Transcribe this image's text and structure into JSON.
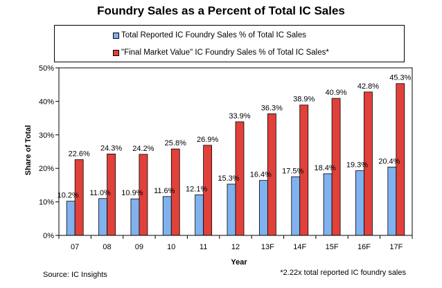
{
  "chart_data": {
    "type": "bar",
    "title": "Foundry Sales as a Percent of Total IC Sales",
    "xlabel": "Year",
    "ylabel": "Share of Total",
    "categories": [
      "07",
      "08",
      "09",
      "10",
      "11",
      "12",
      "13F",
      "14F",
      "15F",
      "16F",
      "17F"
    ],
    "series": [
      {
        "name": "Total Reported IC Foundry Sales % of Total IC Sales",
        "color": "#7fb2ee",
        "values": [
          10.2,
          11.0,
          10.9,
          11.6,
          12.1,
          15.3,
          16.4,
          17.5,
          18.4,
          19.3,
          20.4
        ],
        "labels": [
          "10.2%",
          "11.0%",
          "10.9%",
          "11.6%",
          "12.1%",
          "15.3%",
          "16.4%",
          "17.5%",
          "18.4%",
          "19.3%",
          "20.4%"
        ]
      },
      {
        "name": "\"Final Market Value\" IC Foundry Sales % of Total IC Sales*",
        "color": "#e0413a",
        "values": [
          22.6,
          24.3,
          24.2,
          25.8,
          26.9,
          33.9,
          36.3,
          38.9,
          40.9,
          42.8,
          45.3
        ],
        "labels": [
          "22.6%",
          "24.3%",
          "24.2%",
          "25.8%",
          "26.9%",
          "33.9%",
          "36.3%",
          "38.9%",
          "40.9%",
          "42.8%",
          "45.3%"
        ]
      }
    ],
    "ylim": [
      0,
      50
    ],
    "yticks": [
      0,
      10,
      20,
      30,
      40,
      50
    ],
    "ytick_labels": [
      "0%",
      "10%",
      "20%",
      "30%",
      "40%",
      "50%"
    ],
    "grid": false,
    "legend": "top",
    "source": "Source: IC Insights",
    "footnote": "*2.22x total reported IC foundry sales"
  }
}
